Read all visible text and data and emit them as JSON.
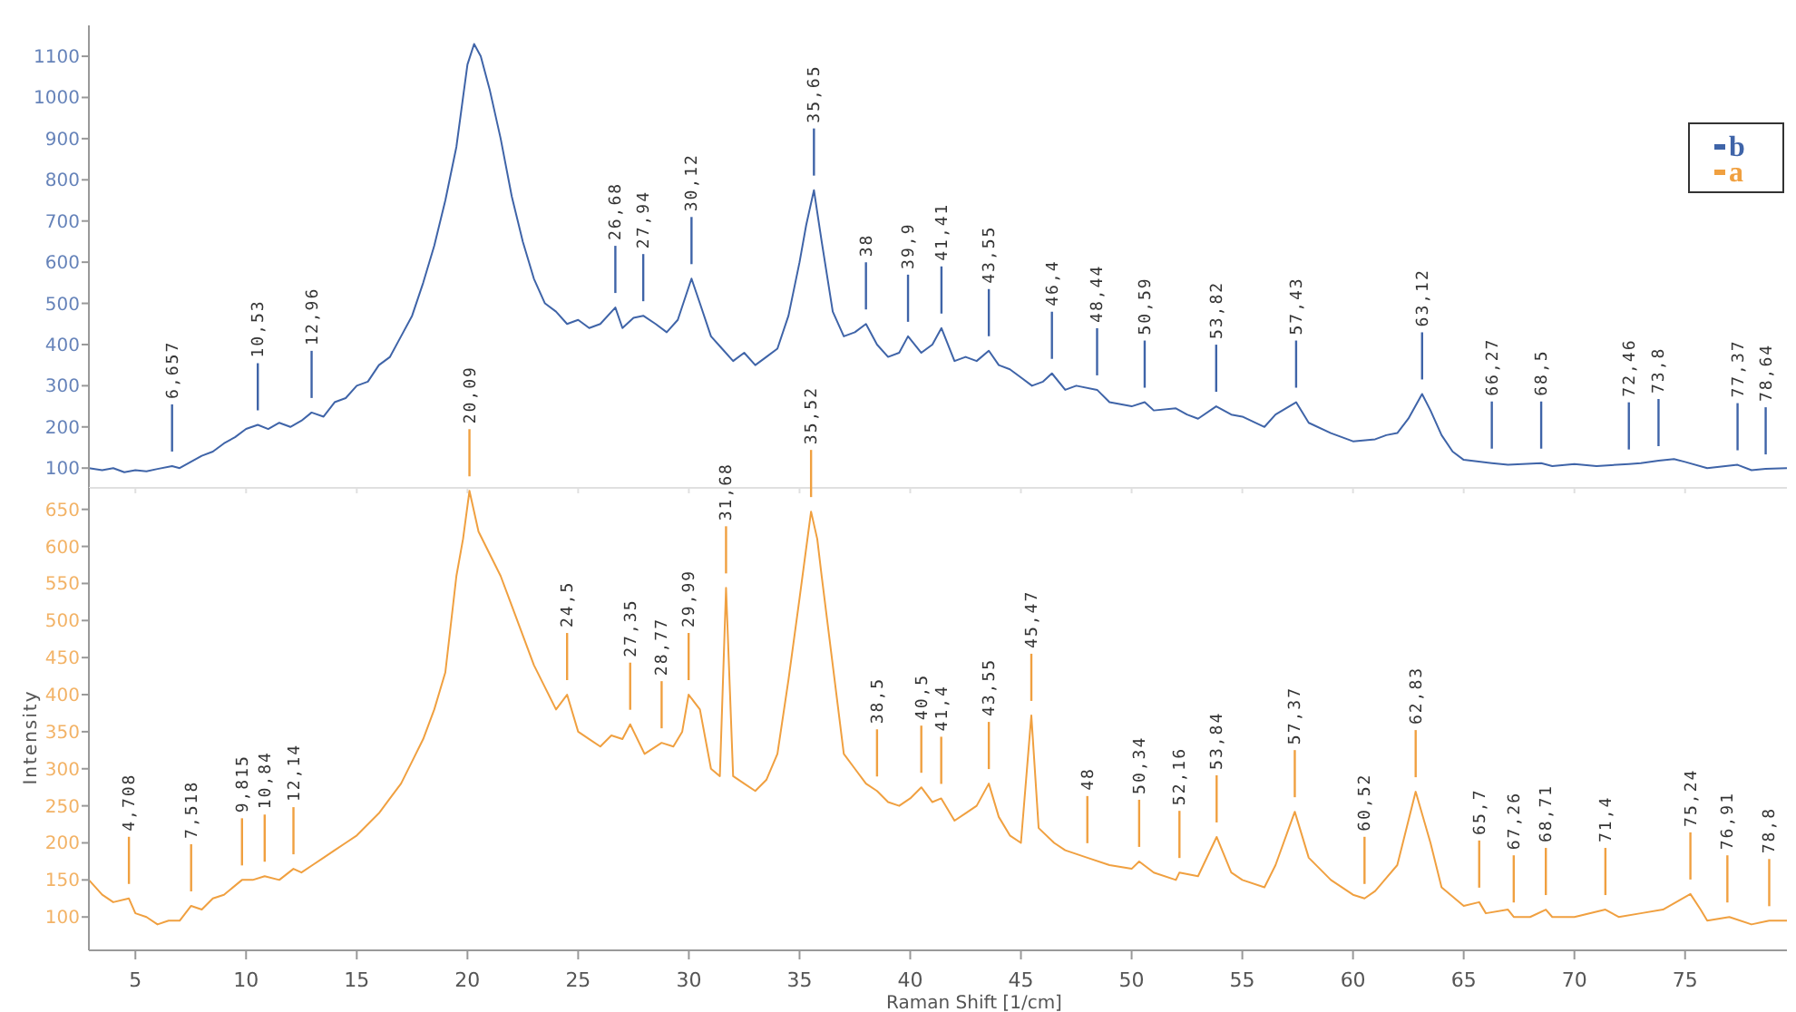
{
  "chart_data": [
    {
      "type": "line",
      "xlim": [
        2.9,
        79.6
      ],
      "xticks": [
        {
          "value": 5,
          "label": null
        },
        {
          "value": 10,
          "label": null
        },
        {
          "value": 15,
          "label": null
        },
        {
          "value": 20,
          "label": null
        },
        {
          "value": 25,
          "label": null
        },
        {
          "value": 30,
          "label": null
        },
        {
          "value": 35,
          "label": null
        },
        {
          "value": 40,
          "label": null
        },
        {
          "value": 45,
          "label": null
        },
        {
          "value": 50,
          "label": null
        },
        {
          "value": 55,
          "label": null
        },
        {
          "value": 60,
          "label": null
        },
        {
          "value": 65,
          "label": null
        },
        {
          "value": 70,
          "label": null
        },
        {
          "value": 75,
          "label": null
        }
      ],
      "ylim": [
        52,
        1175
      ],
      "yticks": [
        100,
        200,
        300,
        400,
        500,
        600,
        700,
        800,
        900,
        1000,
        1100
      ],
      "tick_labels": "y",
      "legend": "top right",
      "series": [
        {
          "name": "b",
          "color": "#3f64a8",
          "x": [
            2.9,
            3.5,
            4,
            4.5,
            5,
            5.5,
            6,
            6.657,
            7,
            7.5,
            8,
            8.5,
            9,
            9.5,
            10,
            10.53,
            11,
            11.5,
            12,
            12.5,
            12.96,
            13.5,
            14,
            14.5,
            15,
            15.5,
            16,
            16.5,
            17,
            17.5,
            18,
            18.5,
            19,
            19.5,
            19.8,
            20,
            20.3,
            20.6,
            21,
            21.5,
            22,
            22.5,
            23,
            23.5,
            24,
            24.5,
            25,
            25.5,
            26,
            26.68,
            27,
            27.5,
            27.94,
            28.5,
            29,
            29.5,
            30.12,
            30.5,
            31,
            31.5,
            32,
            32.5,
            33,
            33.5,
            34,
            34.5,
            35,
            35.3,
            35.65,
            36,
            36.5,
            37,
            37.5,
            38,
            38.5,
            39,
            39.5,
            39.9,
            40.5,
            41,
            41.41,
            42,
            42.5,
            43,
            43.55,
            44,
            44.5,
            45,
            45.5,
            46,
            46.4,
            47,
            47.5,
            48.44,
            49,
            50,
            50.59,
            51,
            52,
            52.5,
            53,
            53.82,
            54.5,
            55,
            56,
            56.5,
            57.43,
            58,
            59,
            60,
            61,
            61.5,
            62,
            62.5,
            63.12,
            63.5,
            64,
            64.5,
            65,
            66.27,
            67,
            68.5,
            69,
            70,
            71,
            72.46,
            73,
            73.8,
            74.5,
            75,
            76,
            77.37,
            78,
            78.64,
            79.6
          ],
          "values": [
            100,
            95,
            100,
            90,
            95,
            92,
            98,
            105,
            100,
            115,
            130,
            140,
            160,
            175,
            195,
            205,
            195,
            210,
            200,
            215,
            235,
            225,
            260,
            270,
            300,
            310,
            350,
            370,
            420,
            470,
            550,
            640,
            750,
            880,
            1000,
            1080,
            1130,
            1100,
            1020,
            900,
            760,
            650,
            560,
            500,
            480,
            450,
            460,
            440,
            450,
            490,
            440,
            465,
            470,
            450,
            430,
            460,
            560,
            500,
            420,
            390,
            360,
            380,
            350,
            370,
            390,
            470,
            600,
            690,
            775,
            650,
            480,
            420,
            430,
            450,
            400,
            370,
            380,
            420,
            380,
            400,
            440,
            360,
            370,
            360,
            385,
            350,
            340,
            320,
            300,
            310,
            330,
            290,
            300,
            290,
            260,
            250,
            260,
            240,
            245,
            230,
            220,
            250,
            230,
            225,
            200,
            230,
            260,
            210,
            185,
            165,
            170,
            180,
            185,
            220,
            280,
            240,
            180,
            140,
            120,
            112,
            108,
            112,
            105,
            110,
            105,
            110,
            112,
            118,
            122,
            115,
            100,
            108,
            95,
            98,
            100
          ]
        }
      ],
      "annotations": [
        {
          "text": "6,657",
          "x": 6.657,
          "y": 105
        },
        {
          "text": "10,53",
          "x": 10.53,
          "y": 205
        },
        {
          "text": "12,96",
          "x": 12.96,
          "y": 235
        },
        {
          "text": "26,68",
          "x": 26.68,
          "y": 490
        },
        {
          "text": "27,94",
          "x": 27.94,
          "y": 470
        },
        {
          "text": "30,12",
          "x": 30.12,
          "y": 560
        },
        {
          "text": "35,65",
          "x": 35.65,
          "y": 775
        },
        {
          "text": "38",
          "x": 38,
          "y": 450
        },
        {
          "text": "39,9",
          "x": 39.9,
          "y": 420
        },
        {
          "text": "41,41",
          "x": 41.41,
          "y": 440
        },
        {
          "text": "43,55",
          "x": 43.55,
          "y": 385
        },
        {
          "text": "46,4",
          "x": 46.4,
          "y": 330
        },
        {
          "text": "48,44",
          "x": 48.44,
          "y": 290
        },
        {
          "text": "50,59",
          "x": 50.59,
          "y": 260
        },
        {
          "text": "53,82",
          "x": 53.82,
          "y": 250
        },
        {
          "text": "57,43",
          "x": 57.43,
          "y": 260
        },
        {
          "text": "63,12",
          "x": 63.12,
          "y": 280
        },
        {
          "text": "66,27",
          "x": 66.27,
          "y": 112
        },
        {
          "text": "68,5",
          "x": 68.5,
          "y": 112
        },
        {
          "text": "72,46",
          "x": 72.46,
          "y": 110
        },
        {
          "text": "73,8",
          "x": 73.8,
          "y": 118
        },
        {
          "text": "77,37",
          "x": 77.37,
          "y": 108
        },
        {
          "text": "78,64",
          "x": 78.64,
          "y": 98
        }
      ]
    },
    {
      "type": "line",
      "xlabel": "Raman Shift [1/cm]",
      "ylabel": "Intensity",
      "xlim": [
        2.9,
        79.6
      ],
      "xticks": [
        5,
        10,
        15,
        20,
        25,
        30,
        35,
        40,
        45,
        50,
        55,
        60,
        65,
        70,
        75
      ],
      "ylim": [
        55,
        679
      ],
      "yticks": [
        100,
        150,
        200,
        250,
        300,
        350,
        400,
        450,
        500,
        550,
        600,
        650
      ],
      "legend": "top right",
      "series": [
        {
          "name": "a",
          "color": "#f0a040",
          "x": [
            2.9,
            3.5,
            4,
            4.708,
            5,
            5.5,
            6,
            6.5,
            7,
            7.518,
            8,
            8.5,
            9,
            9.815,
            10.3,
            10.84,
            11.5,
            12.14,
            12.5,
            13,
            13.5,
            14,
            14.5,
            15,
            15.5,
            16,
            16.5,
            17,
            17.5,
            18,
            18.5,
            19,
            19.5,
            19.8,
            20.09,
            20.5,
            21,
            21.5,
            22,
            22.5,
            23,
            23.5,
            24,
            24.5,
            25,
            25.5,
            26,
            26.5,
            27,
            27.35,
            28,
            28.77,
            29.3,
            29.7,
            29.99,
            30.5,
            31,
            31.4,
            31.68,
            32,
            32.5,
            33,
            33.5,
            34,
            34.5,
            35,
            35.52,
            35.8,
            36,
            36.5,
            37,
            37.5,
            38,
            38.5,
            39,
            39.5,
            40,
            40.5,
            41,
            41.4,
            42,
            42.5,
            43,
            43.55,
            44,
            44.5,
            45,
            45.47,
            45.8,
            46.5,
            47,
            48,
            49,
            50,
            50.34,
            51,
            52,
            52.16,
            53,
            53.84,
            54.5,
            55,
            56,
            56.5,
            57.37,
            58,
            59,
            60,
            60.52,
            61,
            62,
            62.83,
            63.5,
            64,
            65,
            65.7,
            66,
            67,
            67.26,
            68,
            68.71,
            69,
            70,
            71.4,
            72,
            73,
            74,
            75.24,
            75.7,
            76,
            77,
            78,
            78.8,
            79.6
          ],
          "values": [
            150,
            130,
            120,
            125,
            105,
            100,
            90,
            95,
            95,
            115,
            110,
            125,
            130,
            150,
            150,
            155,
            150,
            165,
            160,
            170,
            180,
            190,
            200,
            210,
            225,
            240,
            260,
            280,
            310,
            340,
            380,
            430,
            560,
            610,
            675,
            620,
            590,
            560,
            520,
            480,
            440,
            410,
            380,
            400,
            350,
            340,
            330,
            345,
            340,
            360,
            320,
            335,
            330,
            350,
            400,
            380,
            300,
            290,
            544,
            290,
            280,
            270,
            285,
            320,
            420,
            530,
            647,
            610,
            560,
            440,
            320,
            300,
            280,
            270,
            255,
            250,
            260,
            275,
            255,
            260,
            230,
            240,
            250,
            280,
            235,
            210,
            200,
            372,
            220,
            200,
            190,
            180,
            170,
            165,
            175,
            160,
            150,
            160,
            155,
            208,
            160,
            150,
            140,
            170,
            242,
            180,
            150,
            130,
            125,
            135,
            170,
            269,
            200,
            140,
            115,
            120,
            105,
            110,
            100,
            100,
            110,
            100,
            100,
            110,
            100,
            105,
            110,
            131,
            110,
            95,
            100,
            90,
            95,
            95
          ]
        }
      ],
      "annotations": [
        {
          "text": "4,708",
          "x": 4.708,
          "y": 125
        },
        {
          "text": "7,518",
          "x": 7.518,
          "y": 115
        },
        {
          "text": "9,815",
          "x": 9.815,
          "y": 150
        },
        {
          "text": "10,84",
          "x": 10.84,
          "y": 155
        },
        {
          "text": "12,14",
          "x": 12.14,
          "y": 165
        },
        {
          "text": "20,09",
          "x": 20.09,
          "y": 675
        },
        {
          "text": "24,5",
          "x": 24.5,
          "y": 400
        },
        {
          "text": "27,35",
          "x": 27.35,
          "y": 360
        },
        {
          "text": "28,77",
          "x": 28.77,
          "y": 335
        },
        {
          "text": "29,99",
          "x": 29.99,
          "y": 400
        },
        {
          "text": "31,68",
          "x": 31.68,
          "y": 544
        },
        {
          "text": "35,52",
          "x": 35.52,
          "y": 647
        },
        {
          "text": "38,5",
          "x": 38.5,
          "y": 270
        },
        {
          "text": "40,5",
          "x": 40.5,
          "y": 275
        },
        {
          "text": "41,4",
          "x": 41.4,
          "y": 260
        },
        {
          "text": "43,55",
          "x": 43.55,
          "y": 280
        },
        {
          "text": "45,47",
          "x": 45.47,
          "y": 372
        },
        {
          "text": "48",
          "x": 48,
          "y": 180
        },
        {
          "text": "50,34",
          "x": 50.34,
          "y": 175
        },
        {
          "text": "52,16",
          "x": 52.16,
          "y": 160
        },
        {
          "text": "53,84",
          "x": 53.84,
          "y": 208
        },
        {
          "text": "57,37",
          "x": 57.37,
          "y": 242
        },
        {
          "text": "60,52",
          "x": 60.52,
          "y": 125
        },
        {
          "text": "62,83",
          "x": 62.83,
          "y": 269
        },
        {
          "text": "65,7",
          "x": 65.7,
          "y": 120
        },
        {
          "text": "67,26",
          "x": 67.26,
          "y": 100
        },
        {
          "text": "68,71",
          "x": 68.71,
          "y": 110
        },
        {
          "text": "71,4",
          "x": 71.4,
          "y": 110
        },
        {
          "text": "75,24",
          "x": 75.24,
          "y": 131
        },
        {
          "text": "76,91",
          "x": 76.91,
          "y": 100
        },
        {
          "text": "78,8",
          "x": 78.8,
          "y": 95
        }
      ]
    }
  ]
}
